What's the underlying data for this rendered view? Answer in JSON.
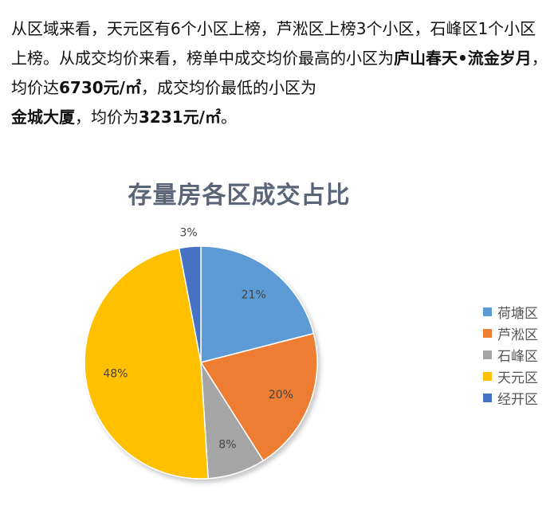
{
  "article": {
    "line1": "从区域来看，天元区有6个小区上榜，芦淞区上榜3个小区，石峰区1个小区上榜。从成交均价来看，榜单中成交均价最高的小区为",
    "highest_name": "庐山春天•流金岁月",
    "mid1": "，均价达",
    "highest_price": "6730元/㎡",
    "mid2": "，成交均价最低的小区为",
    "lowest_name": "金城大厦",
    "mid3": "，均价为",
    "lowest_price": "3231元/㎡",
    "end": "。"
  },
  "chart_data": {
    "type": "pie",
    "title": "存量房各区成交占比",
    "categories": [
      "荷塘区",
      "芦淞区",
      "石峰区",
      "天元区",
      "经开区"
    ],
    "values": [
      21,
      20,
      8,
      48,
      3
    ],
    "labels": [
      "21%",
      "20%",
      "8%",
      "48%",
      "3%"
    ],
    "colors": [
      "#5b9bd5",
      "#ed7d31",
      "#a5a5a5",
      "#ffc000",
      "#4472c4"
    ],
    "start_angle": "12 o'clock",
    "direction": "clockwise",
    "legend_position": "right"
  }
}
